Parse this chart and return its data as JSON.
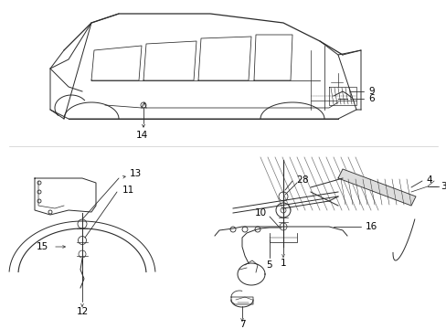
{
  "background_color": "#ffffff",
  "line_color": "#2a2a2a",
  "label_color": "#000000",
  "fig_width": 4.89,
  "fig_height": 3.6,
  "dpi": 100,
  "lw": 0.7,
  "font_size": 7.5
}
